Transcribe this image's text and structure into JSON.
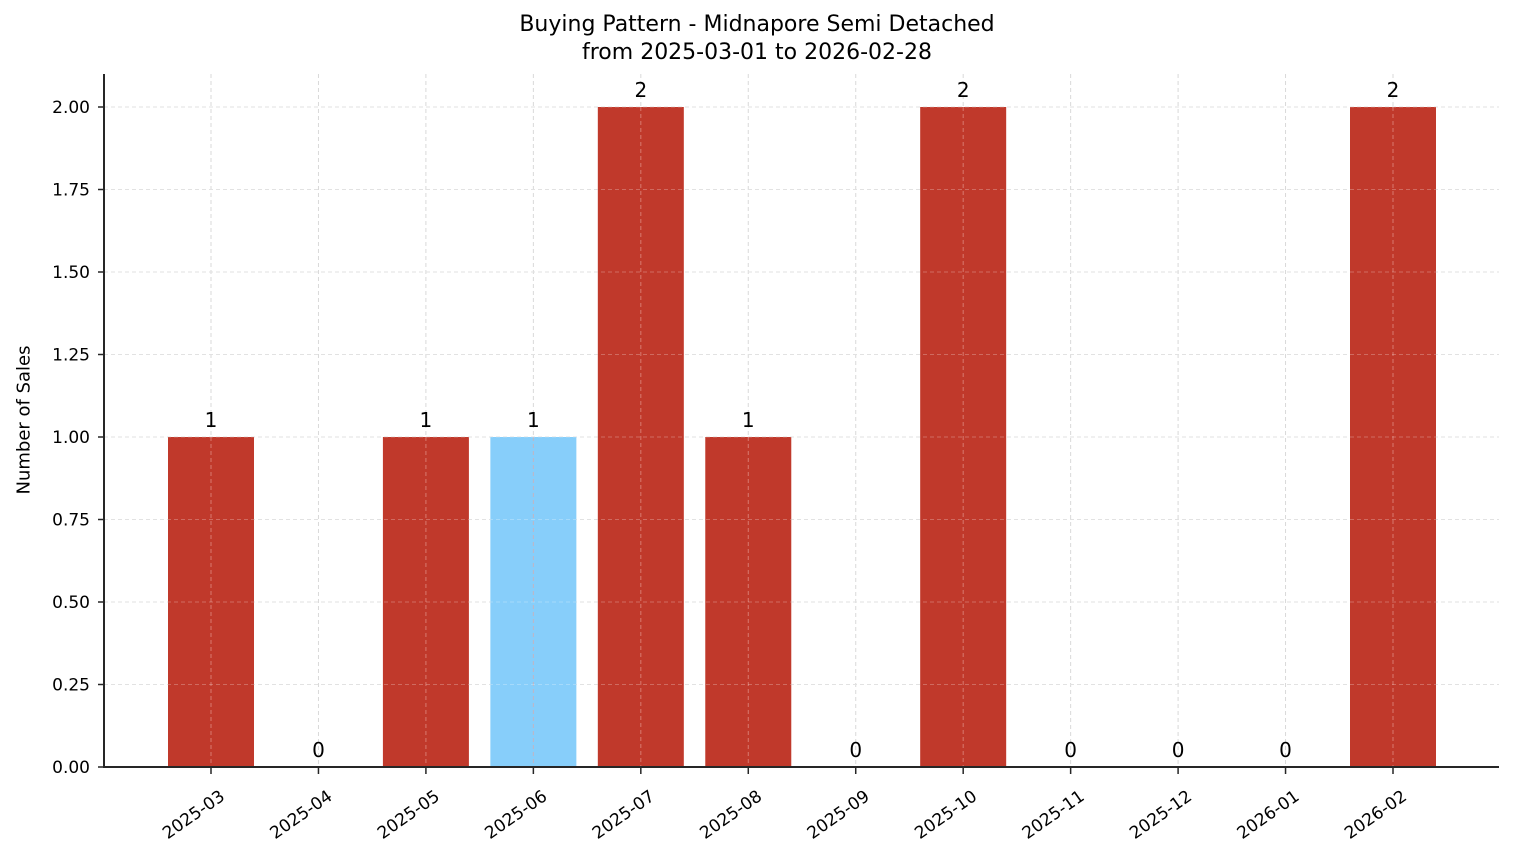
{
  "chart_data": {
    "type": "bar",
    "title": "Buying Pattern - Midnapore Semi Detached",
    "subtitle": "from 2025-03-01 to 2026-02-28",
    "xlabel": "",
    "ylabel": "Number of Sales",
    "categories": [
      "2025-03",
      "2025-04",
      "2025-05",
      "2025-06",
      "2025-07",
      "2025-08",
      "2025-09",
      "2025-10",
      "2025-11",
      "2025-12",
      "2026-01",
      "2026-02"
    ],
    "values": [
      1,
      0,
      1,
      1,
      2,
      1,
      0,
      2,
      0,
      0,
      0,
      2
    ],
    "data_labels": [
      "1",
      "0",
      "1",
      "1",
      "2",
      "1",
      "0",
      "2",
      "0",
      "0",
      "0",
      "2"
    ],
    "highlight_index": 3,
    "colors": {
      "bar": "#c0392b",
      "highlight": "#87cefa",
      "grid": "#d9d9d9",
      "axis": "#262626"
    },
    "yticks": [
      "0.00",
      "0.25",
      "0.50",
      "0.75",
      "1.00",
      "1.25",
      "1.50",
      "1.75",
      "2.00"
    ],
    "ylim": [
      0,
      2.1
    ],
    "grid": true,
    "legend": null
  }
}
